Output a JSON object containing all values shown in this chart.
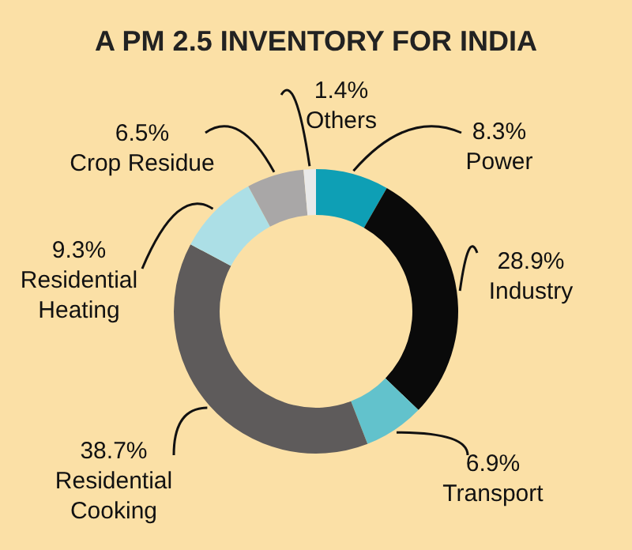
{
  "chart_data": {
    "type": "donut",
    "title": "A PM 2.5 INVENTORY FOR INDIA",
    "categories": [
      "Power",
      "Industry",
      "Transport",
      "Residential Cooking",
      "Residential Heating",
      "Crop Residue",
      "Others"
    ],
    "values": [
      8.3,
      28.9,
      6.9,
      38.7,
      9.3,
      6.5,
      1.4
    ],
    "value_labels": [
      "8.3%",
      "28.9%",
      "6.9%",
      "38.7%",
      "9.3%",
      "6.5%",
      "1.4%"
    ],
    "colors": [
      "#0e9fb5",
      "#0a0a0a",
      "#62c2cc",
      "#5e5b5b",
      "#acdfe6",
      "#a9a7a7",
      "#e9e9e9"
    ]
  }
}
